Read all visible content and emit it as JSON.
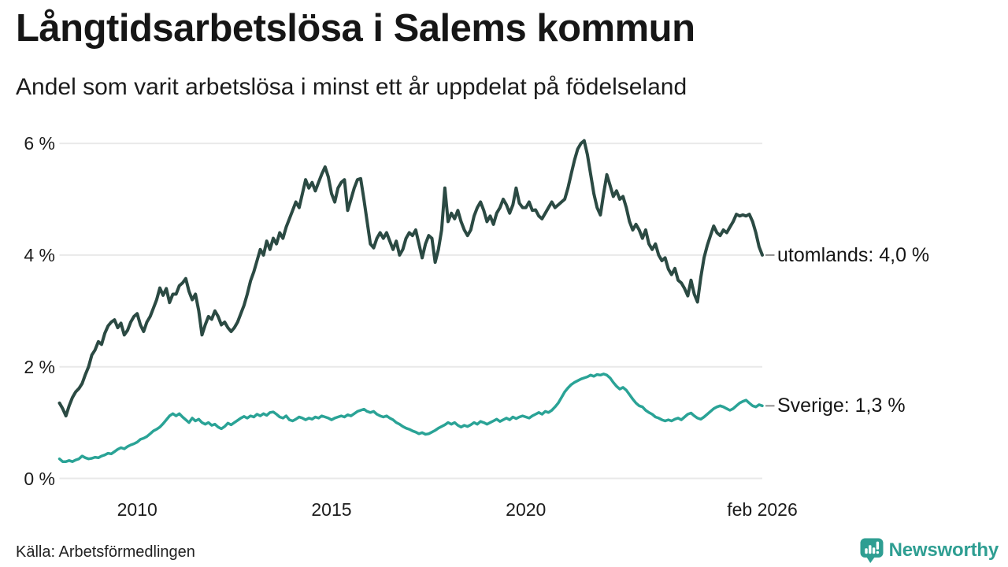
{
  "header": {
    "title": "Långtidsarbetslösa i Salems kommun",
    "subtitle": "Andel som varit arbetslösa i minst ett år uppdelat på födelseland"
  },
  "footer": {
    "source": "Källa: Arbetsförmedlingen",
    "brand": "Newsworthy"
  },
  "colors": {
    "utomlands_line": "#2b4a43",
    "sverige_line": "#2aa396",
    "grid": "#e9e9e9",
    "end_tick_dash": "#8f8f8f",
    "text": "#161616",
    "brand_teal": "#2e9e92"
  },
  "chart_data": {
    "type": "line",
    "title": "Långtidsarbetslösa i Salems kommun",
    "subtitle": "Andel som varit arbetslösa i minst ett år uppdelat på födelseland",
    "source": "Källa: Arbetsförmedlingen",
    "grid": true,
    "legend_position": "right-end-labels",
    "x_unit": "month",
    "x_start": "2008-01",
    "x_end": "2026-02",
    "ylim": [
      0,
      6.4
    ],
    "yticks": [
      {
        "value": 6,
        "label": "6 %"
      },
      {
        "value": 4,
        "label": "4 %"
      },
      {
        "value": 2,
        "label": "2 %"
      },
      {
        "value": 0,
        "label": "0 %"
      }
    ],
    "xticks": [
      {
        "label": "2010",
        "month": 24
      },
      {
        "label": "2015",
        "month": 84
      },
      {
        "label": "2020",
        "month": 144
      },
      {
        "label": "feb 2026",
        "month": 217
      }
    ],
    "series": [
      {
        "name": "utomlands",
        "end_label": "utomlands: 4,0 %",
        "last_value": 4.0,
        "color": "#2b4a43",
        "stroke_width": 4,
        "values": [
          1.35,
          1.25,
          1.12,
          1.3,
          1.45,
          1.55,
          1.61,
          1.7,
          1.86,
          2.0,
          2.21,
          2.3,
          2.45,
          2.4,
          2.6,
          2.73,
          2.8,
          2.84,
          2.7,
          2.78,
          2.57,
          2.65,
          2.8,
          2.9,
          2.95,
          2.75,
          2.63,
          2.8,
          2.9,
          3.05,
          3.2,
          3.41,
          3.28,
          3.4,
          3.15,
          3.3,
          3.3,
          3.45,
          3.5,
          3.58,
          3.35,
          3.2,
          3.3,
          3.0,
          2.57,
          2.75,
          2.9,
          2.85,
          3.0,
          2.9,
          2.75,
          2.8,
          2.7,
          2.63,
          2.7,
          2.8,
          2.95,
          3.1,
          3.3,
          3.54,
          3.7,
          3.9,
          4.1,
          4.0,
          4.25,
          4.1,
          4.3,
          4.2,
          4.4,
          4.3,
          4.5,
          4.65,
          4.8,
          4.95,
          4.85,
          5.1,
          5.35,
          5.2,
          5.3,
          5.15,
          5.3,
          5.45,
          5.58,
          5.4,
          5.1,
          4.95,
          5.2,
          5.3,
          5.35,
          4.8,
          5.0,
          5.2,
          5.35,
          5.37,
          5.0,
          4.6,
          4.2,
          4.13,
          4.3,
          4.4,
          4.3,
          4.4,
          4.25,
          4.1,
          4.25,
          4.0,
          4.1,
          4.3,
          4.4,
          4.35,
          4.45,
          4.2,
          3.95,
          4.2,
          4.35,
          4.3,
          3.87,
          4.1,
          4.45,
          5.2,
          4.6,
          4.75,
          4.65,
          4.8,
          4.6,
          4.45,
          4.35,
          4.45,
          4.7,
          4.85,
          4.95,
          4.8,
          4.6,
          4.7,
          4.55,
          4.75,
          4.85,
          5.0,
          4.9,
          4.75,
          4.9,
          5.2,
          4.93,
          4.85,
          4.85,
          4.95,
          4.8,
          4.81,
          4.7,
          4.65,
          4.75,
          4.85,
          4.95,
          4.85,
          4.9,
          4.95,
          5.0,
          5.2,
          5.45,
          5.7,
          5.9,
          6.0,
          6.05,
          5.8,
          5.45,
          5.1,
          4.85,
          4.72,
          5.1,
          5.44,
          5.25,
          5.05,
          5.15,
          5.0,
          5.05,
          4.85,
          4.6,
          4.45,
          4.55,
          4.45,
          4.3,
          4.45,
          4.2,
          4.1,
          4.2,
          4.0,
          3.9,
          3.95,
          3.75,
          3.65,
          3.76,
          3.55,
          3.5,
          3.4,
          3.27,
          3.55,
          3.3,
          3.16,
          3.6,
          3.95,
          4.17,
          4.35,
          4.52,
          4.4,
          4.35,
          4.45,
          4.4,
          4.5,
          4.6,
          4.73,
          4.7,
          4.72,
          4.7,
          4.73,
          4.6,
          4.4,
          4.15,
          4.0
        ]
      },
      {
        "name": "Sverige",
        "end_label": "Sverige: 1,3 %",
        "last_value": 1.3,
        "color": "#2aa396",
        "stroke_width": 3.5,
        "values": [
          0.35,
          0.3,
          0.3,
          0.32,
          0.3,
          0.33,
          0.35,
          0.4,
          0.37,
          0.35,
          0.36,
          0.38,
          0.37,
          0.4,
          0.42,
          0.45,
          0.44,
          0.48,
          0.52,
          0.55,
          0.53,
          0.57,
          0.6,
          0.62,
          0.65,
          0.7,
          0.72,
          0.75,
          0.8,
          0.85,
          0.88,
          0.92,
          0.98,
          1.05,
          1.12,
          1.16,
          1.12,
          1.16,
          1.1,
          1.05,
          1.0,
          1.08,
          1.03,
          1.06,
          1.0,
          0.97,
          1.0,
          0.95,
          0.97,
          0.92,
          0.89,
          0.93,
          0.99,
          0.96,
          1.0,
          1.04,
          1.08,
          1.11,
          1.08,
          1.12,
          1.1,
          1.15,
          1.12,
          1.16,
          1.13,
          1.18,
          1.19,
          1.15,
          1.1,
          1.08,
          1.12,
          1.05,
          1.03,
          1.06,
          1.1,
          1.08,
          1.05,
          1.08,
          1.06,
          1.1,
          1.08,
          1.12,
          1.1,
          1.08,
          1.05,
          1.08,
          1.1,
          1.12,
          1.1,
          1.14,
          1.12,
          1.16,
          1.2,
          1.22,
          1.24,
          1.2,
          1.18,
          1.2,
          1.15,
          1.12,
          1.1,
          1.12,
          1.08,
          1.05,
          1.0,
          0.97,
          0.93,
          0.9,
          0.88,
          0.85,
          0.83,
          0.8,
          0.82,
          0.79,
          0.8,
          0.83,
          0.86,
          0.9,
          0.93,
          0.96,
          1.0,
          0.97,
          1.0,
          0.95,
          0.92,
          0.95,
          0.93,
          0.96,
          1.0,
          0.97,
          1.02,
          1.0,
          0.97,
          1.0,
          1.03,
          1.06,
          1.02,
          1.05,
          1.08,
          1.05,
          1.1,
          1.07,
          1.1,
          1.12,
          1.1,
          1.08,
          1.12,
          1.15,
          1.18,
          1.15,
          1.2,
          1.18,
          1.22,
          1.28,
          1.35,
          1.45,
          1.55,
          1.62,
          1.68,
          1.72,
          1.75,
          1.78,
          1.8,
          1.82,
          1.85,
          1.83,
          1.86,
          1.85,
          1.87,
          1.85,
          1.8,
          1.72,
          1.65,
          1.6,
          1.63,
          1.58,
          1.5,
          1.42,
          1.35,
          1.3,
          1.28,
          1.22,
          1.18,
          1.15,
          1.1,
          1.08,
          1.05,
          1.03,
          1.05,
          1.03,
          1.06,
          1.08,
          1.05,
          1.1,
          1.15,
          1.17,
          1.12,
          1.08,
          1.06,
          1.1,
          1.15,
          1.2,
          1.25,
          1.28,
          1.3,
          1.28,
          1.25,
          1.22,
          1.25,
          1.3,
          1.35,
          1.38,
          1.4,
          1.35,
          1.3,
          1.28,
          1.32,
          1.3
        ]
      }
    ]
  }
}
